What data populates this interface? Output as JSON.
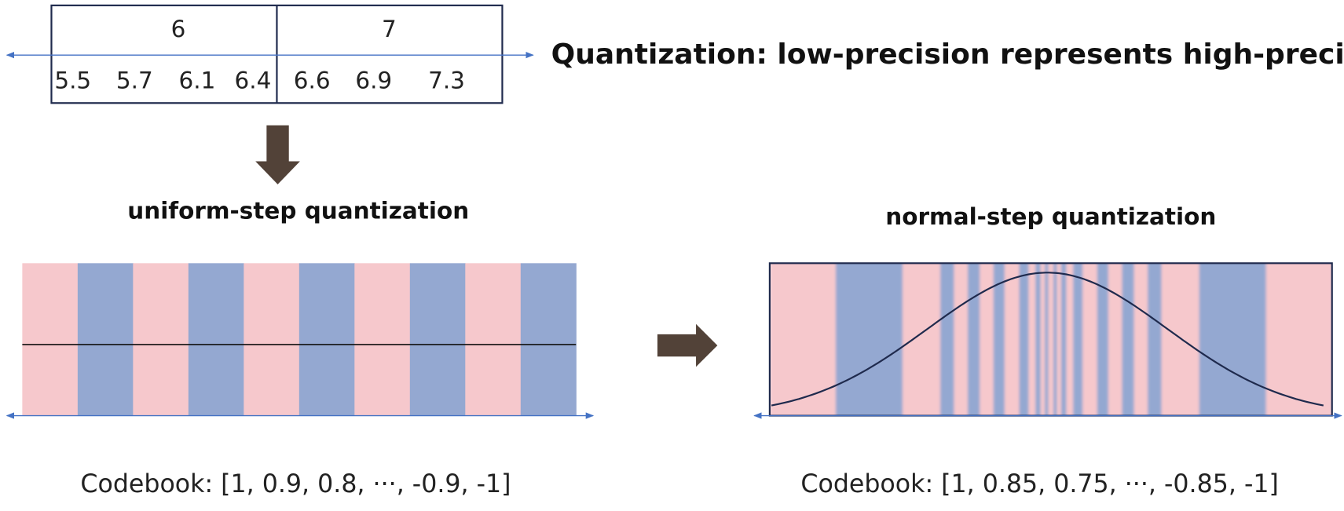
{
  "header": {
    "title": "Quantization: low-precision represents high-precision"
  },
  "number_line": {
    "groups": [
      "6",
      "7"
    ],
    "values": [
      "5.5",
      "5.7",
      "6.1",
      "6.4",
      "6.6",
      "6.9",
      "7.3"
    ]
  },
  "uniform": {
    "title": "uniform-step quantization",
    "codebook": "Codebook: [1, 0.9, 0.8, ···, -0.9, -1]"
  },
  "normal": {
    "title": "normal-step quantization",
    "codebook": "Codebook: [1, 0.85, 0.75, ···, -0.85, -1]"
  }
}
